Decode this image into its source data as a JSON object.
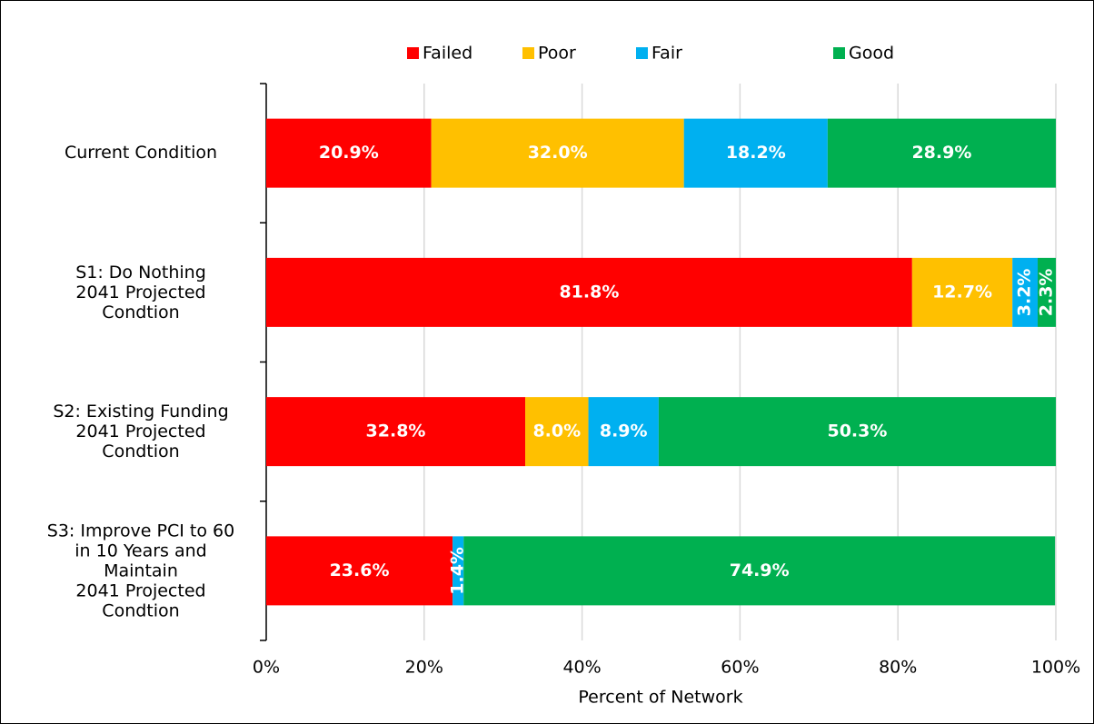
{
  "chart_data": {
    "type": "stacked_bar_horizontal",
    "x_label": "Percent of Network",
    "categories": [
      "Current Condition",
      "S1: Do Nothing\n2041 Projected\nCondtion",
      "S2: Existing Funding\n2041 Projected\nCondtion",
      "S3: Improve PCI to 60\nin 10 Years and\nMaintain\n2041 Projected\nCondtion"
    ],
    "series": [
      {
        "name": "Failed",
        "color": "#ff0000",
        "values": [
          20.9,
          81.8,
          32.8,
          23.6
        ],
        "value_labels": [
          "20.9%",
          "81.8%",
          "32.8%",
          "23.6%"
        ]
      },
      {
        "name": "Poor",
        "color": "#ffc000",
        "values": [
          32.0,
          12.7,
          8.0,
          0
        ],
        "value_labels": [
          "32.0%",
          "12.7%",
          "8.0%",
          null
        ]
      },
      {
        "name": "Fair",
        "color": "#00b0f0",
        "values": [
          18.2,
          3.2,
          8.9,
          1.4
        ],
        "value_labels": [
          "18.2%",
          "3.2%",
          "8.9%",
          "1.4%"
        ]
      },
      {
        "name": "Good",
        "color": "#00b050",
        "values": [
          28.9,
          2.3,
          50.3,
          74.9
        ],
        "value_labels": [
          "28.9%",
          "2.3%",
          "50.3%",
          "74.9%"
        ]
      }
    ],
    "xlim": [
      0,
      100
    ],
    "xticks": [
      {
        "value": 0,
        "label": "0%"
      },
      {
        "value": 20,
        "label": "20%"
      },
      {
        "value": 40,
        "label": "40%"
      },
      {
        "value": 60,
        "label": "60%"
      },
      {
        "value": 80,
        "label": "80%"
      },
      {
        "value": 100,
        "label": "100%"
      }
    ],
    "grid": true,
    "legend": "top"
  }
}
